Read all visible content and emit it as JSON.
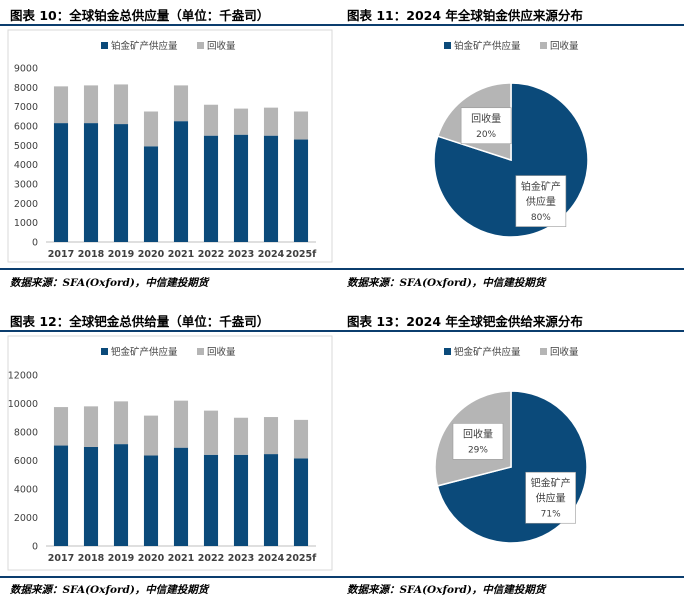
{
  "colors": {
    "mine": "#0b4a7a",
    "recycle": "#b5b5b5",
    "rule": "#0b3d6e",
    "axis_text": "#404040"
  },
  "figures": [
    {
      "title": "图表 10：全球铂金总供应量（单位：千盎司）",
      "source": "数据来源：SFA(Oxford)，中信建投期货"
    },
    {
      "title": "图表 11：2024 年全球铂金供应来源分布",
      "source": "数据来源：SFA(Oxford)，中信建投期货"
    },
    {
      "title": "图表 12：全球钯金总供给量（单位：千盎司）",
      "source": "数据来源：SFA(Oxford)，中信建投期货"
    },
    {
      "title": "图表 13：2024 年全球钯金供给来源分布",
      "source": "数据来源：SFA(Oxford)，中信建投期货"
    }
  ],
  "chart_data": [
    {
      "type": "bar",
      "stacked": true,
      "categories": [
        "2017",
        "2018",
        "2019",
        "2020",
        "2021",
        "2022",
        "2023",
        "2024",
        "2025f"
      ],
      "series": [
        {
          "name": "铂金矿产供应量",
          "values": [
            6150,
            6150,
            6100,
            4950,
            6250,
            5500,
            5550,
            5500,
            5300
          ]
        },
        {
          "name": "回收量",
          "values": [
            1900,
            1950,
            2050,
            1800,
            1850,
            1600,
            1350,
            1450,
            1450
          ]
        }
      ],
      "ylim": [
        0,
        9000
      ],
      "yticks": [
        0,
        1000,
        2000,
        3000,
        4000,
        5000,
        6000,
        7000,
        8000,
        9000
      ],
      "legend": "top-center",
      "grid": false
    },
    {
      "type": "pie",
      "slices": [
        {
          "name": "铂金矿产供应量",
          "label_lines": [
            "铂金矿产",
            "供应量"
          ],
          "value": 80,
          "pct_label": "80%"
        },
        {
          "name": "回收量",
          "label_lines": [
            "回收量"
          ],
          "value": 20,
          "pct_label": "20%"
        }
      ],
      "legend": "top-center"
    },
    {
      "type": "bar",
      "stacked": true,
      "categories": [
        "2017",
        "2018",
        "2019",
        "2020",
        "2021",
        "2022",
        "2023",
        "2024",
        "2025f"
      ],
      "series": [
        {
          "name": "钯金矿产供应量",
          "values": [
            7050,
            6950,
            7150,
            6350,
            6900,
            6400,
            6400,
            6450,
            6150
          ]
        },
        {
          "name": "回收量",
          "values": [
            2700,
            2850,
            3000,
            2800,
            3300,
            3100,
            2600,
            2600,
            2700
          ]
        }
      ],
      "ylim": [
        0,
        12000
      ],
      "yticks": [
        0,
        2000,
        4000,
        6000,
        8000,
        10000,
        12000
      ],
      "legend": "top-center",
      "grid": false
    },
    {
      "type": "pie",
      "slices": [
        {
          "name": "钯金矿产供应量",
          "label_lines": [
            "钯金矿产",
            "供应量"
          ],
          "value": 71,
          "pct_label": "71%"
        },
        {
          "name": "回收量",
          "label_lines": [
            "回收量"
          ],
          "value": 29,
          "pct_label": "29%"
        }
      ],
      "legend": "top-center"
    }
  ]
}
